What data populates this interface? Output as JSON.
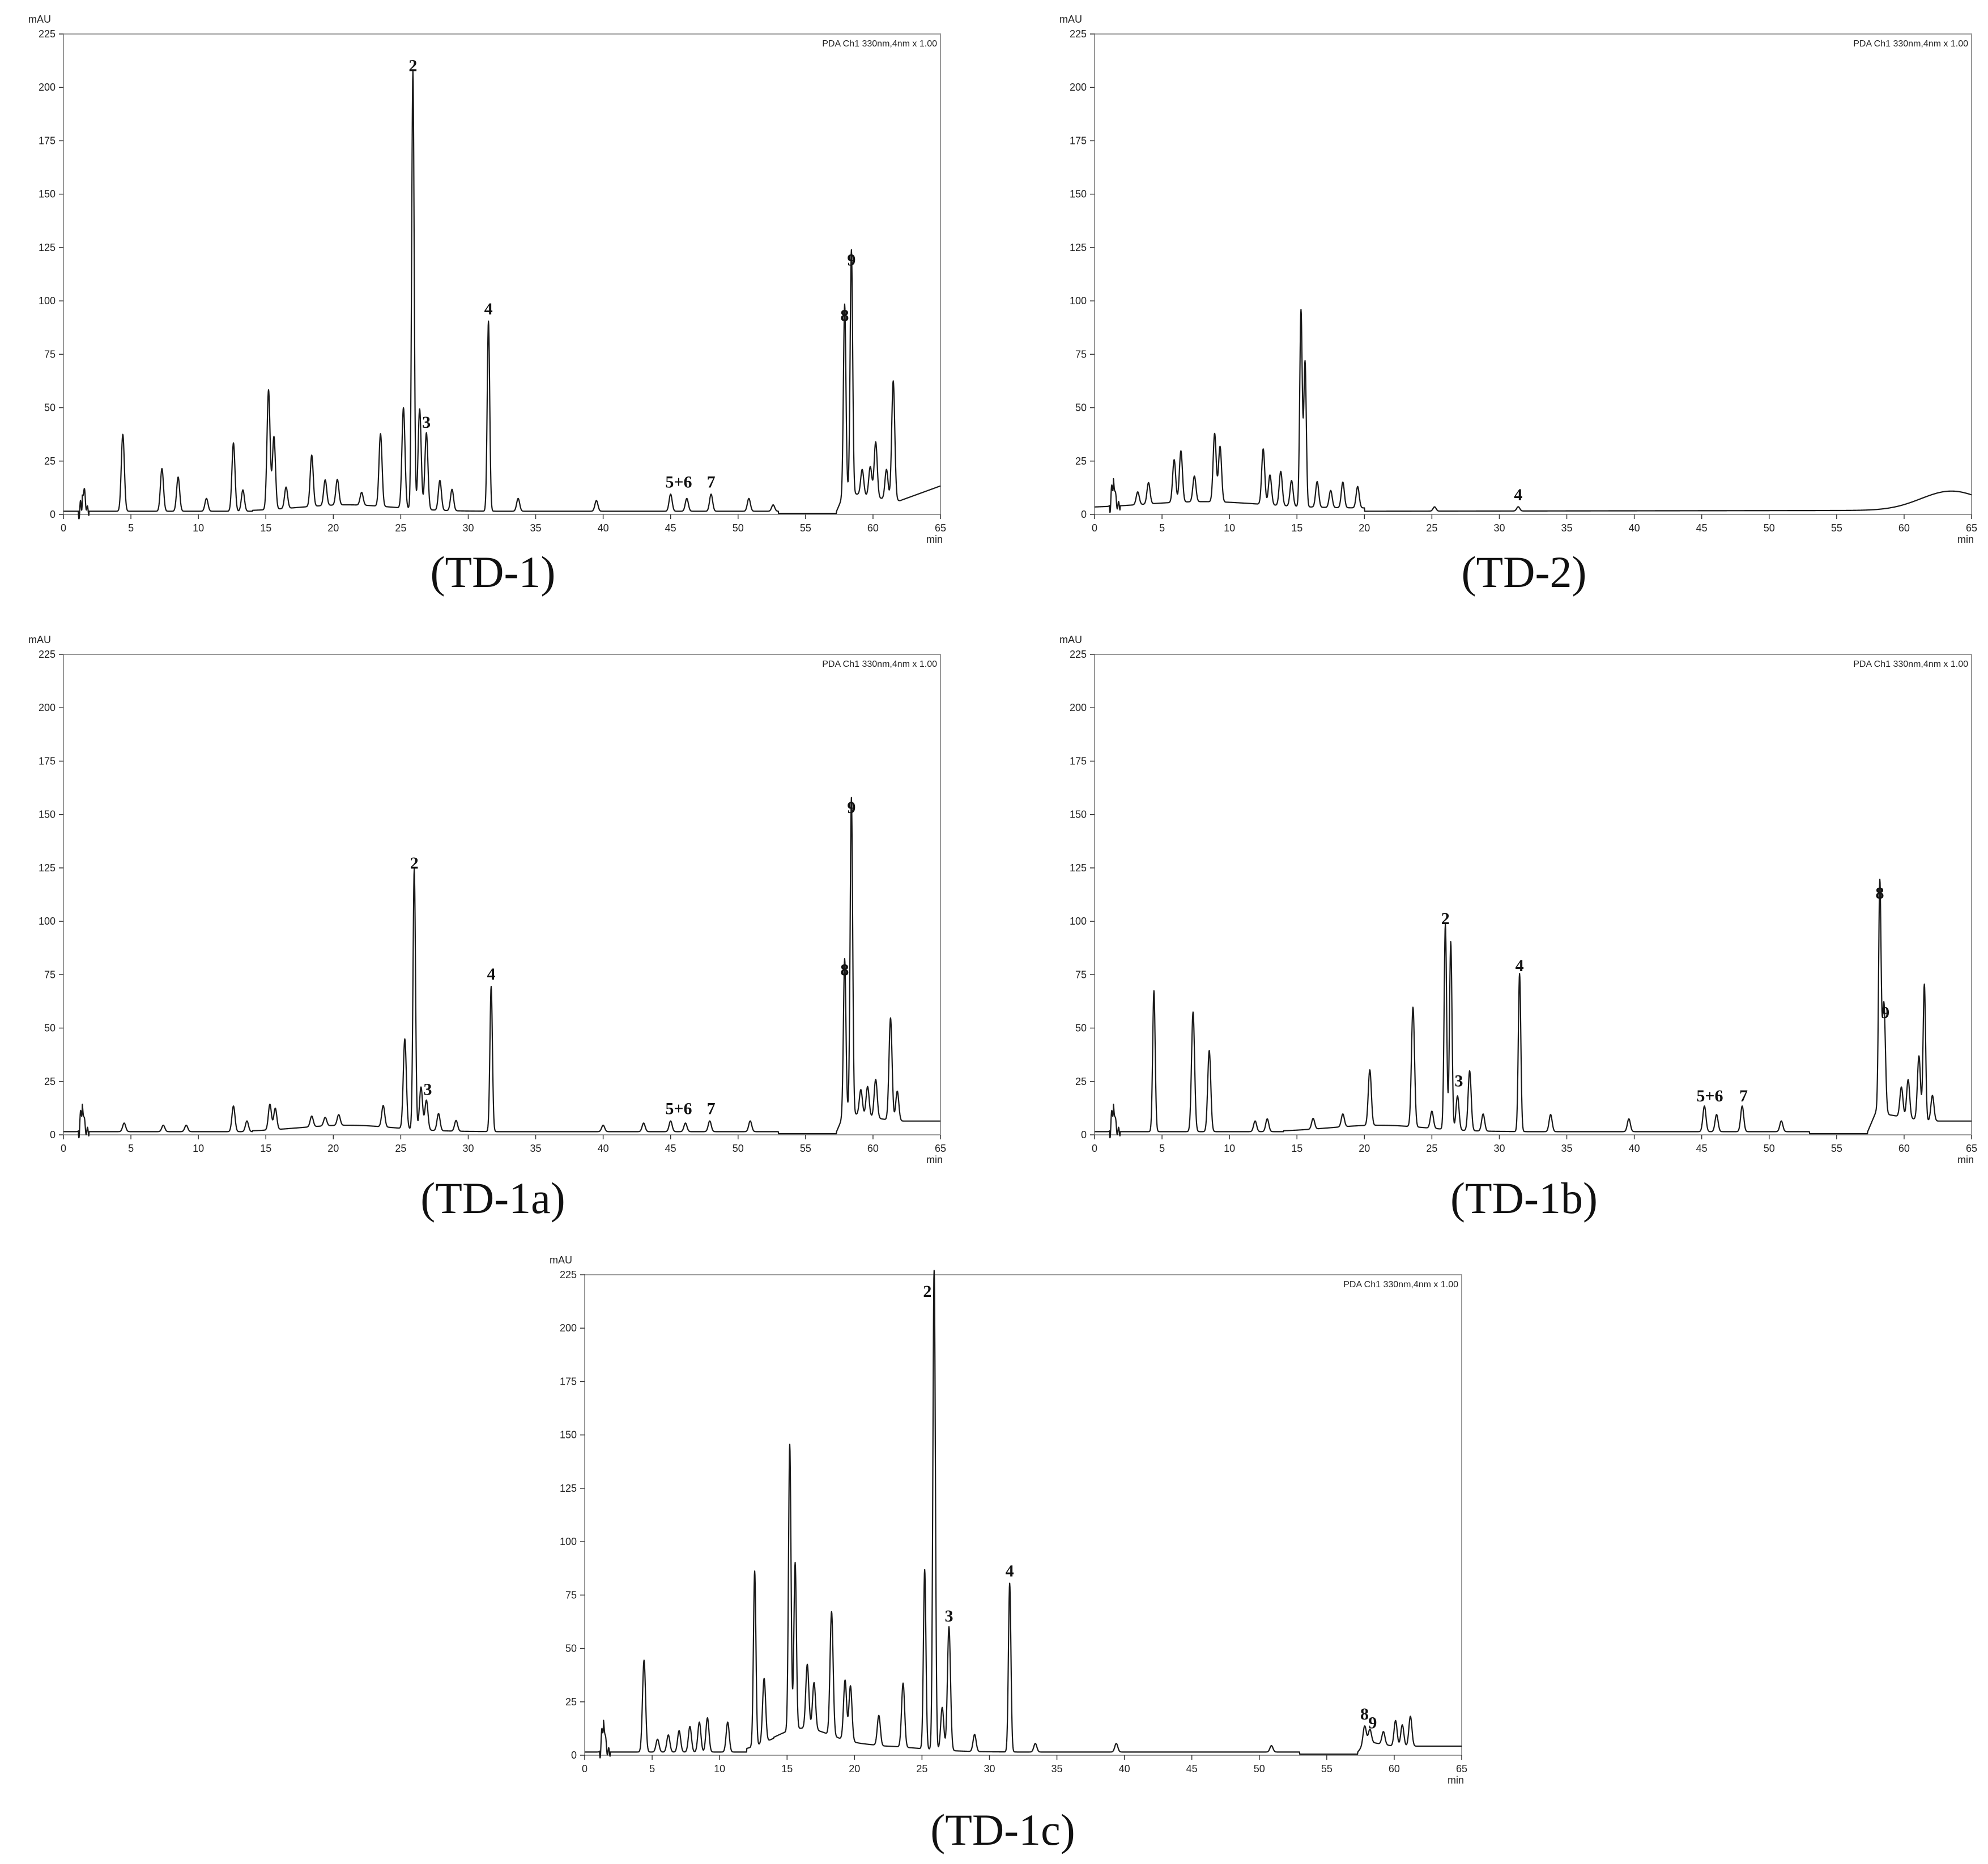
{
  "colors": {
    "trace": "#1a1a1a",
    "frame": "#9a9a9a",
    "axis": "#333333"
  },
  "panels": [
    {
      "id": "TD-1",
      "caption": "(TD-1)",
      "ylabel": "mAU",
      "xlabel": "min",
      "channel": "PDA Ch1 330nm,4nm x 1.00",
      "xlim": [
        0,
        65
      ],
      "ylim": [
        0,
        225
      ],
      "xticks": [
        0,
        5,
        10,
        15,
        20,
        25,
        30,
        35,
        40,
        45,
        50,
        55,
        60,
        65
      ],
      "yticks": [
        0,
        25,
        50,
        75,
        100,
        125,
        150,
        175,
        200,
        225
      ],
      "peaks": [
        [
          1.5,
          10
        ],
        [
          4.4,
          36
        ],
        [
          7.3,
          20
        ],
        [
          8.5,
          16
        ],
        [
          10.6,
          6
        ],
        [
          12.6,
          32
        ],
        [
          13.3,
          10
        ],
        [
          15.2,
          56
        ],
        [
          15.6,
          34
        ],
        [
          16.5,
          10
        ],
        [
          18.4,
          24
        ],
        [
          19.4,
          12
        ],
        [
          20.3,
          12
        ],
        [
          22.1,
          6
        ],
        [
          23.5,
          34
        ],
        [
          25.2,
          47
        ],
        [
          25.9,
          205
        ],
        [
          26.4,
          47
        ],
        [
          26.9,
          36
        ],
        [
          27.9,
          14
        ],
        [
          28.8,
          10
        ],
        [
          31.5,
          89
        ],
        [
          33.7,
          6
        ],
        [
          39.5,
          5
        ],
        [
          45.0,
          8
        ],
        [
          46.2,
          6
        ],
        [
          48.0,
          8
        ],
        [
          50.8,
          6
        ],
        [
          52.6,
          3
        ],
        [
          57.9,
          88
        ],
        [
          58.4,
          114
        ],
        [
          59.2,
          12
        ],
        [
          59.8,
          14
        ],
        [
          60.2,
          26
        ],
        [
          61.0,
          14
        ],
        [
          61.5,
          56
        ]
      ],
      "labels": [
        {
          "text": "2",
          "x": 25.9,
          "y": 205
        },
        {
          "text": "3",
          "x": 26.9,
          "y": 38
        },
        {
          "text": "4",
          "x": 31.5,
          "y": 91
        },
        {
          "text": "5+6",
          "x": 45.6,
          "y": 10
        },
        {
          "text": "7",
          "x": 48.0,
          "y": 10
        },
        {
          "text": "8",
          "x": 57.9,
          "y": 88
        },
        {
          "text": "9",
          "x": 58.4,
          "y": 114
        }
      ]
    },
    {
      "id": "TD-2",
      "caption": "(TD-2)",
      "ylabel": "mAU",
      "xlabel": "min",
      "channel": "PDA Ch1 330nm,4nm x 1.00",
      "xlim": [
        0,
        65
      ],
      "ylim": [
        0,
        225
      ],
      "xticks": [
        0,
        5,
        10,
        15,
        20,
        25,
        30,
        35,
        40,
        45,
        50,
        55,
        60,
        65
      ],
      "yticks": [
        0,
        25,
        50,
        75,
        100,
        125,
        150,
        175,
        200,
        225
      ],
      "peaks": [
        [
          1.4,
          12
        ],
        [
          3.2,
          6
        ],
        [
          4.0,
          10
        ],
        [
          5.9,
          20
        ],
        [
          6.4,
          24
        ],
        [
          7.4,
          12
        ],
        [
          8.9,
          32
        ],
        [
          9.3,
          26
        ],
        [
          12.5,
          26
        ],
        [
          13.0,
          14
        ],
        [
          13.8,
          16
        ],
        [
          14.6,
          12
        ],
        [
          15.3,
          92
        ],
        [
          15.6,
          68
        ],
        [
          16.5,
          12
        ],
        [
          17.5,
          8
        ],
        [
          18.4,
          12
        ],
        [
          19.5,
          10
        ],
        [
          25.2,
          2
        ],
        [
          31.4,
          2
        ]
      ],
      "labels": [
        {
          "text": "4",
          "x": 31.4,
          "y": 4
        }
      ]
    },
    {
      "id": "TD-1a",
      "caption": "(TD-1a)",
      "ylabel": "mAU",
      "xlabel": "min",
      "channel": "PDA Ch1 330nm,4nm x 1.00",
      "xlim": [
        0,
        65
      ],
      "ylim": [
        0,
        225
      ],
      "xticks": [
        0,
        5,
        10,
        15,
        20,
        25,
        30,
        35,
        40,
        45,
        50,
        55,
        60,
        65
      ],
      "yticks": [
        0,
        25,
        50,
        75,
        100,
        125,
        150,
        175,
        200,
        225
      ],
      "peaks": [
        [
          1.4,
          12
        ],
        [
          4.5,
          4
        ],
        [
          7.4,
          3
        ],
        [
          9.1,
          3
        ],
        [
          12.6,
          12
        ],
        [
          13.6,
          5
        ],
        [
          15.3,
          12
        ],
        [
          15.7,
          10
        ],
        [
          18.4,
          5
        ],
        [
          19.4,
          4
        ],
        [
          20.4,
          5
        ],
        [
          23.7,
          10
        ],
        [
          25.3,
          42
        ],
        [
          26.0,
          122
        ],
        [
          26.5,
          20
        ],
        [
          26.9,
          14
        ],
        [
          27.8,
          8
        ],
        [
          29.1,
          5
        ],
        [
          31.7,
          68
        ],
        [
          40.0,
          3
        ],
        [
          43.0,
          4
        ],
        [
          45.0,
          5
        ],
        [
          46.1,
          4
        ],
        [
          47.9,
          5
        ],
        [
          50.9,
          5
        ],
        [
          57.9,
          72
        ],
        [
          58.4,
          148
        ],
        [
          59.1,
          12
        ],
        [
          59.6,
          14
        ],
        [
          60.2,
          18
        ],
        [
          61.3,
          48
        ],
        [
          61.8,
          14
        ]
      ],
      "labels": [
        {
          "text": "2",
          "x": 26.0,
          "y": 122
        },
        {
          "text": "3",
          "x": 27.0,
          "y": 16
        },
        {
          "text": "4",
          "x": 31.7,
          "y": 70
        },
        {
          "text": "5+6",
          "x": 45.6,
          "y": 7
        },
        {
          "text": "7",
          "x": 48.0,
          "y": 7
        },
        {
          "text": "8",
          "x": 57.9,
          "y": 72
        },
        {
          "text": "9",
          "x": 58.4,
          "y": 148
        }
      ]
    },
    {
      "id": "TD-1b",
      "caption": "(TD-1b)",
      "ylabel": "mAU",
      "xlabel": "min",
      "channel": "PDA Ch1 330nm,4nm x 1.00",
      "xlim": [
        0,
        65
      ],
      "ylim": [
        0,
        225
      ],
      "xticks": [
        0,
        5,
        10,
        15,
        20,
        25,
        30,
        35,
        40,
        45,
        50,
        55,
        60,
        65
      ],
      "yticks": [
        0,
        25,
        50,
        75,
        100,
        125,
        150,
        175,
        200,
        225
      ],
      "peaks": [
        [
          1.4,
          12
        ],
        [
          4.4,
          66
        ],
        [
          7.3,
          56
        ],
        [
          8.5,
          38
        ],
        [
          11.9,
          5
        ],
        [
          12.8,
          6
        ],
        [
          16.2,
          5
        ],
        [
          18.4,
          6
        ],
        [
          20.4,
          26
        ],
        [
          23.6,
          56
        ],
        [
          25.0,
          8
        ],
        [
          26.0,
          96
        ],
        [
          26.4,
          88
        ],
        [
          26.9,
          16
        ],
        [
          27.8,
          28
        ],
        [
          28.8,
          8
        ],
        [
          31.5,
          74
        ],
        [
          33.8,
          8
        ],
        [
          39.6,
          6
        ],
        [
          45.2,
          12
        ],
        [
          46.1,
          8
        ],
        [
          48.0,
          12
        ],
        [
          50.9,
          5
        ],
        [
          58.2,
          108
        ],
        [
          58.5,
          52
        ],
        [
          59.8,
          14
        ],
        [
          60.3,
          18
        ],
        [
          61.1,
          30
        ],
        [
          61.5,
          64
        ],
        [
          62.1,
          12
        ]
      ],
      "labels": [
        {
          "text": "2",
          "x": 26.0,
          "y": 96
        },
        {
          "text": "3",
          "x": 27.0,
          "y": 20
        },
        {
          "text": "4",
          "x": 31.5,
          "y": 74
        },
        {
          "text": "5+6",
          "x": 45.6,
          "y": 13
        },
        {
          "text": "7",
          "x": 48.1,
          "y": 13
        },
        {
          "text": "8",
          "x": 58.2,
          "y": 108
        },
        {
          "text": "9",
          "x": 58.6,
          "y": 52
        }
      ]
    },
    {
      "id": "TD-1c",
      "caption": "(TD-1c)",
      "ylabel": "mAU",
      "xlabel": "min",
      "channel": "PDA Ch1 330nm,4nm x 1.00",
      "xlim": [
        0,
        65
      ],
      "ylim": [
        0,
        225
      ],
      "xticks": [
        0,
        5,
        10,
        15,
        20,
        25,
        30,
        35,
        40,
        45,
        50,
        55,
        60,
        65
      ],
      "yticks": [
        0,
        25,
        50,
        75,
        100,
        125,
        150,
        175,
        200,
        225
      ],
      "peaks": [
        [
          1.4,
          14
        ],
        [
          4.4,
          43
        ],
        [
          5.4,
          6
        ],
        [
          6.2,
          8
        ],
        [
          7.0,
          10
        ],
        [
          7.8,
          12
        ],
        [
          8.5,
          14
        ],
        [
          9.1,
          16
        ],
        [
          10.6,
          14
        ],
        [
          12.6,
          82
        ],
        [
          13.3,
          30
        ],
        [
          15.2,
          134
        ],
        [
          15.6,
          78
        ],
        [
          16.5,
          30
        ],
        [
          17.0,
          22
        ],
        [
          18.3,
          58
        ],
        [
          19.3,
          28
        ],
        [
          19.7,
          26
        ],
        [
          21.8,
          14
        ],
        [
          23.6,
          30
        ],
        [
          25.2,
          84
        ],
        [
          25.9,
          226
        ],
        [
          26.5,
          20
        ],
        [
          27.0,
          58
        ],
        [
          28.9,
          8
        ],
        [
          31.5,
          79
        ],
        [
          33.4,
          4
        ],
        [
          39.4,
          4
        ],
        [
          50.9,
          3
        ],
        [
          57.8,
          8
        ],
        [
          58.2,
          6
        ],
        [
          59.2,
          6
        ],
        [
          60.1,
          12
        ],
        [
          60.6,
          10
        ],
        [
          61.2,
          14
        ]
      ],
      "labels": [
        {
          "text": "2",
          "x": 25.4,
          "y": 212
        },
        {
          "text": "3",
          "x": 27.0,
          "y": 60
        },
        {
          "text": "4",
          "x": 31.5,
          "y": 81
        },
        {
          "text": "8",
          "x": 57.8,
          "y": 14
        },
        {
          "text": "9",
          "x": 58.4,
          "y": 10
        }
      ]
    }
  ]
}
